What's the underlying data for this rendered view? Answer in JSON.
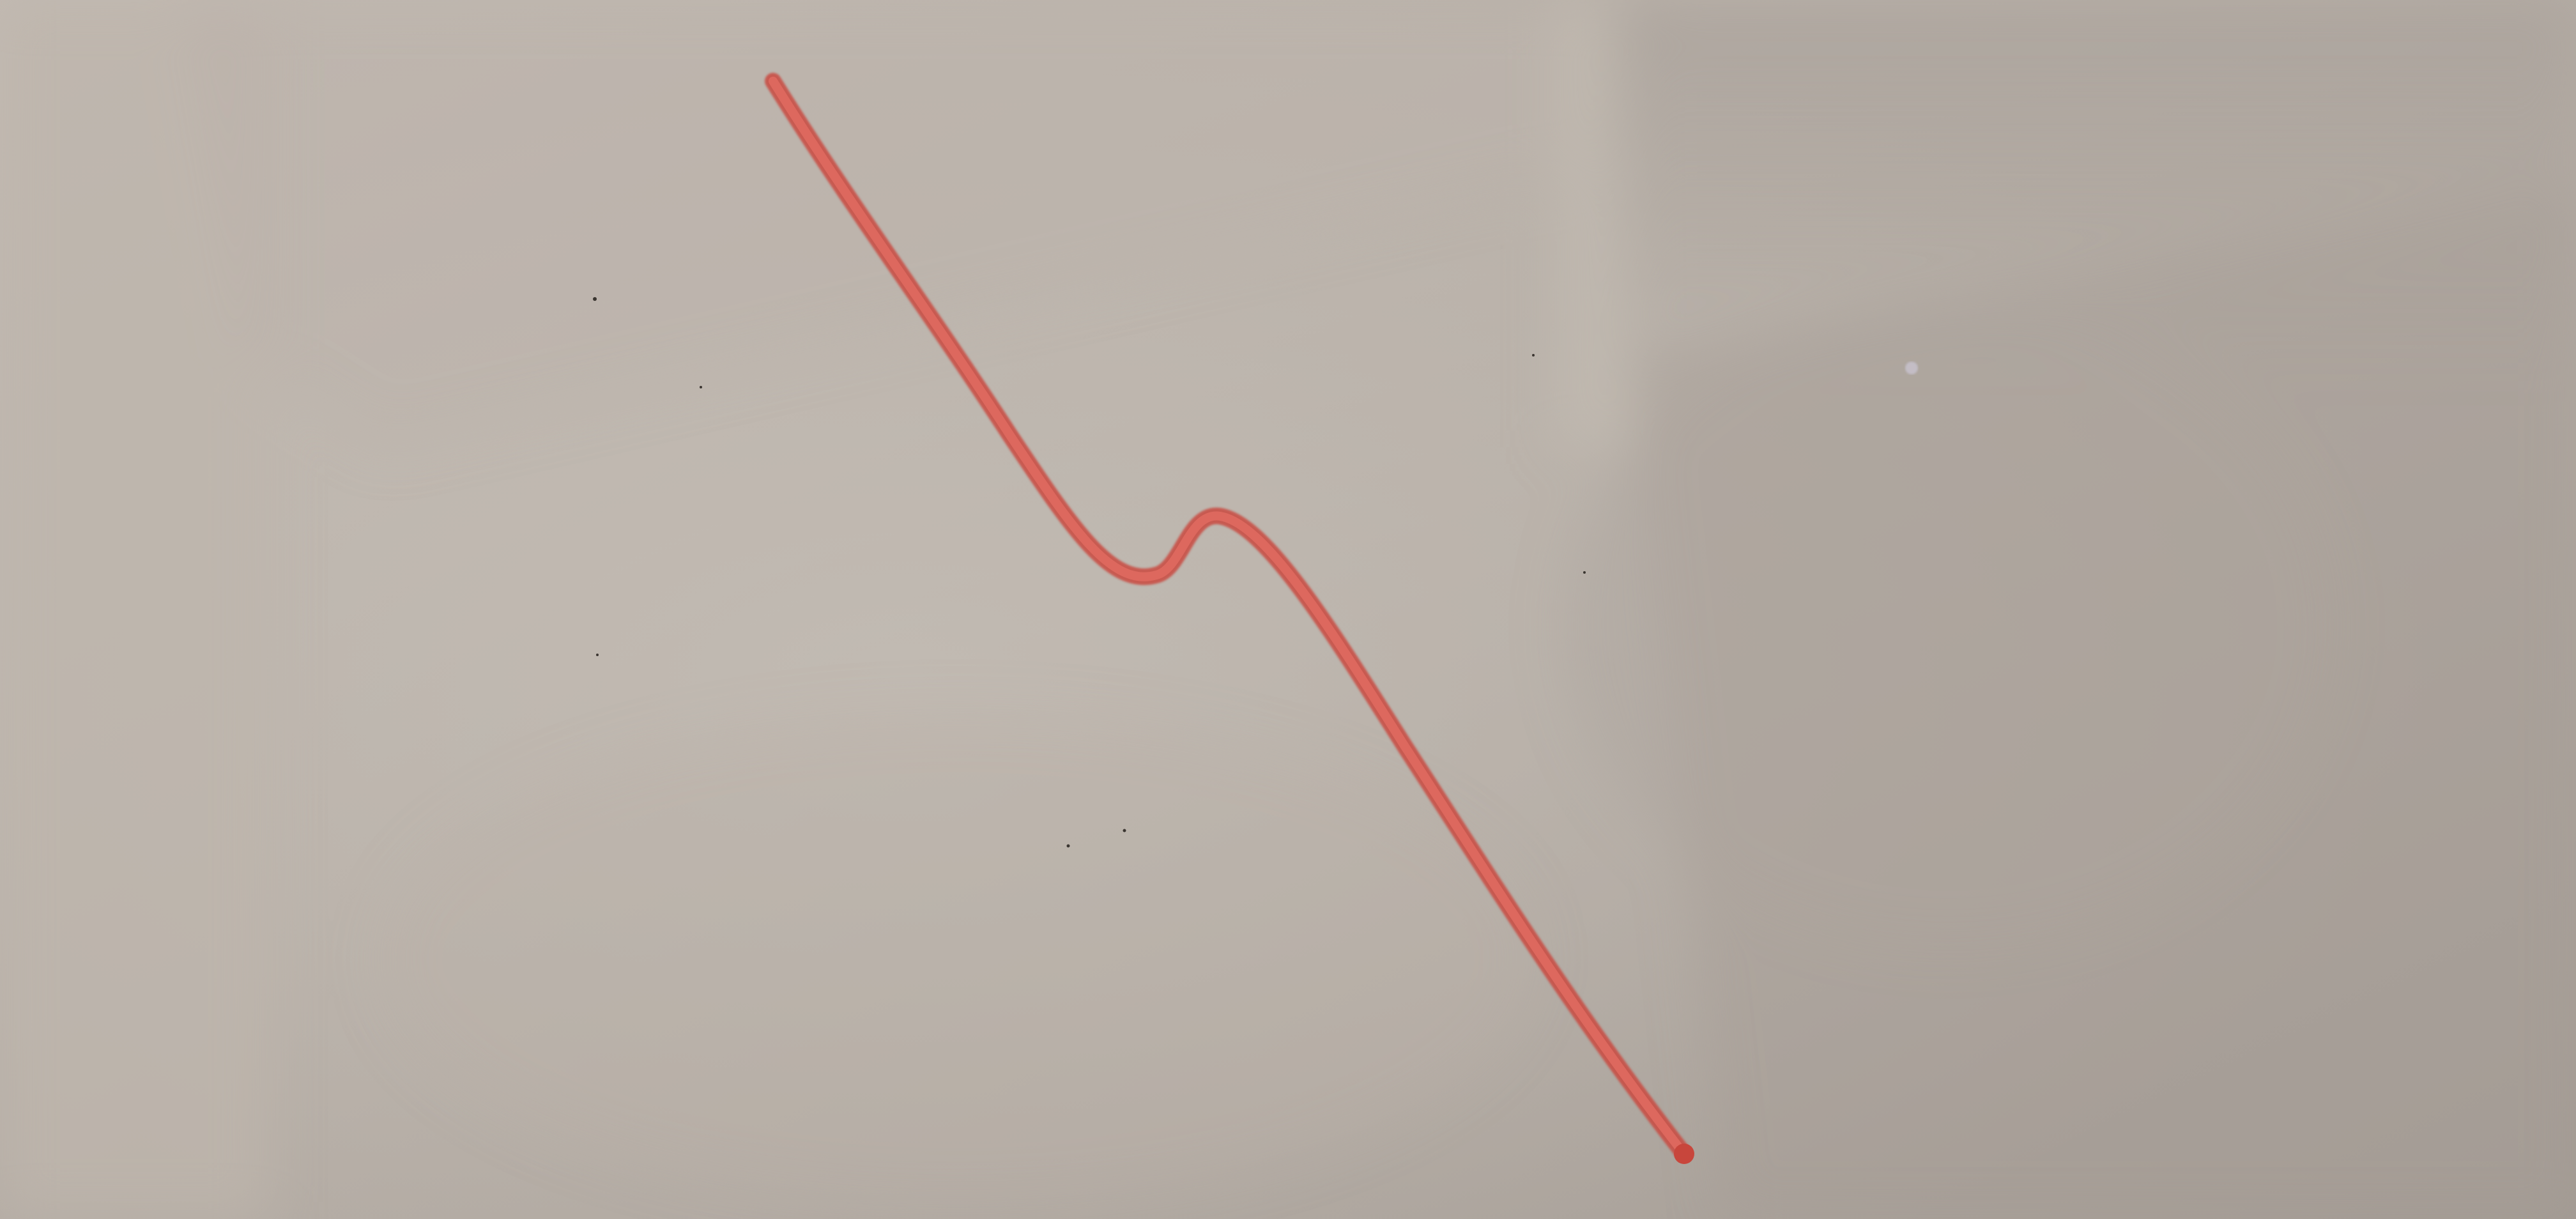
{
  "scene": {
    "description_colors": {
      "surface_base": "#b5ada5",
      "surface_light": "#c3bcb4",
      "surface_shadow": "#a39b93",
      "marker_stroke": "#d9544a",
      "marker_core": "#e06a60",
      "speck": "#3a3530"
    },
    "objects": {
      "surface": "whiteboard-surface",
      "stroke": "red-marker-curve"
    }
  }
}
